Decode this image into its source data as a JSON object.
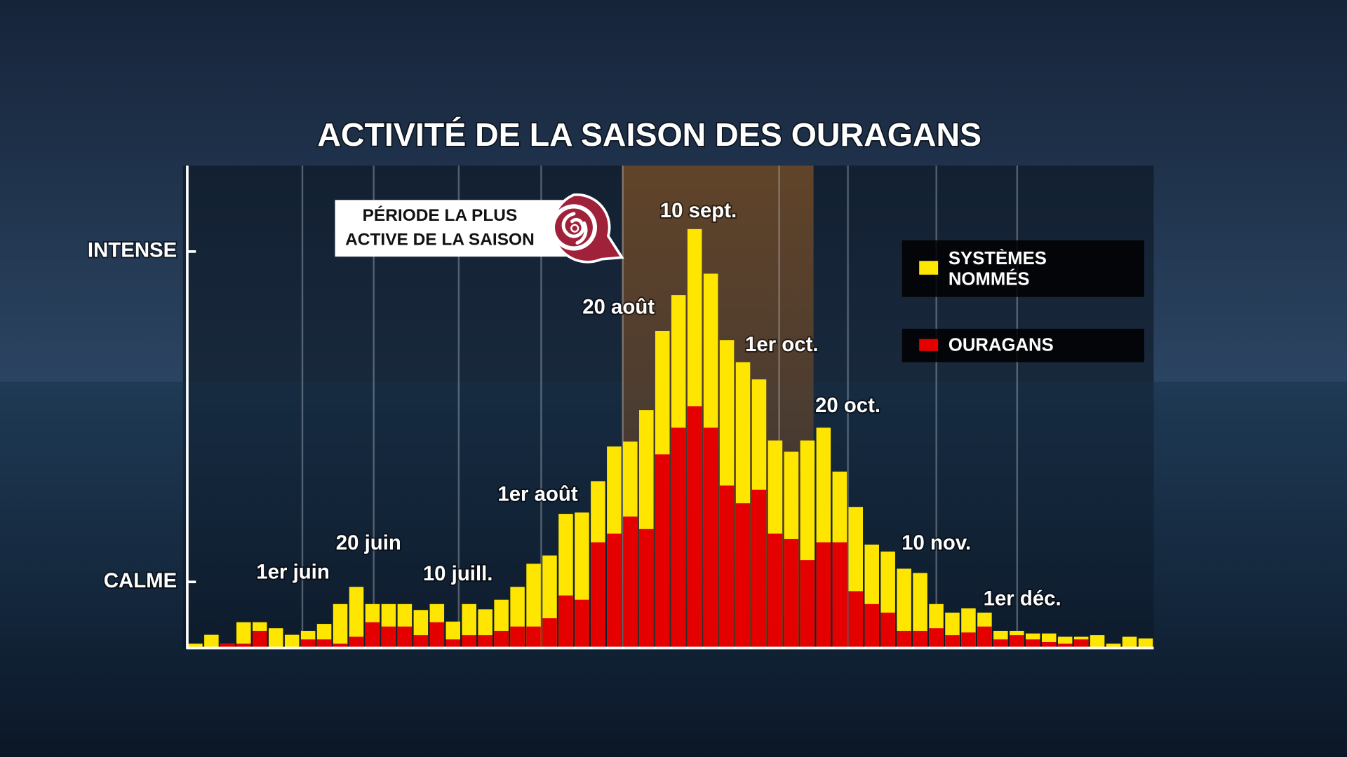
{
  "chart_data": {
    "type": "bar",
    "title": "ACTIVITÉ DE LA SAISON DES OURAGANS",
    "annotation": [
      "PÉRIODE LA PLUS",
      "ACTIVE DE LA SAISON"
    ],
    "categories": [
      null,
      null,
      null,
      null,
      null,
      null,
      null,
      "1er juin",
      null,
      null,
      null,
      "20 juin",
      null,
      null,
      null,
      null,
      "10 juill.",
      null,
      null,
      null,
      null,
      "1er août",
      null,
      null,
      null,
      null,
      "20 août",
      null,
      null,
      null,
      null,
      "10 sept.",
      null,
      null,
      null,
      null,
      "1er oct.",
      null,
      null,
      null,
      "20 oct.",
      null,
      null,
      null,
      null,
      null,
      "10 nov.",
      null,
      null,
      null,
      null,
      "1er déc.",
      null,
      null,
      null,
      null,
      null,
      null,
      null,
      null
    ],
    "series": [
      {
        "name": "SYSTÈMES NOMMÉS",
        "color": "#ffe600",
        "values": [
          1.3,
          4,
          1.3,
          7.8,
          7.8,
          6,
          4,
          5.2,
          7.3,
          13.3,
          18.5,
          13.3,
          13.3,
          13.3,
          11.5,
          13.3,
          8,
          13.3,
          11.7,
          14.6,
          18.5,
          25.5,
          28,
          40.6,
          41,
          50.5,
          61,
          62.5,
          72,
          96,
          106.8,
          126.8,
          113.3,
          93.2,
          86.5,
          81.3,
          62.8,
          59.4,
          62.8,
          66.7,
          53.4,
          42.7,
          31.3,
          29.2,
          24,
          22.7,
          13.3,
          10.7,
          12,
          10.7,
          5.2,
          5.2,
          4.4,
          4.4,
          3.4,
          3.4,
          3.9,
          1.3,
          3.4,
          2.9
        ]
      },
      {
        "name": "OURAGANS",
        "color": "#e50000",
        "values": [
          0,
          0,
          1.3,
          1.3,
          5.2,
          0,
          0,
          2.6,
          2.6,
          1.3,
          3.4,
          7.8,
          6.5,
          6.5,
          3.9,
          7.8,
          2.6,
          3.9,
          3.9,
          5.2,
          6.5,
          6.5,
          9,
          15.9,
          14.6,
          32,
          34.6,
          39.8,
          36,
          58.6,
          66.7,
          73.2,
          66.7,
          49.2,
          43.8,
          47.9,
          34.6,
          33,
          26.6,
          32,
          32,
          17.2,
          13.3,
          10.7,
          5.2,
          5.2,
          6,
          3.9,
          4.7,
          6.5,
          2.6,
          3.9,
          2.6,
          1.8,
          1.3,
          2.6,
          0,
          0,
          0,
          0
        ]
      }
    ],
    "ylim": [
      0,
      146
    ],
    "yticks": [
      {
        "value": 20,
        "label": "CALME"
      },
      {
        "value": 120,
        "label": "INTENSE"
      }
    ],
    "grid": true
  }
}
